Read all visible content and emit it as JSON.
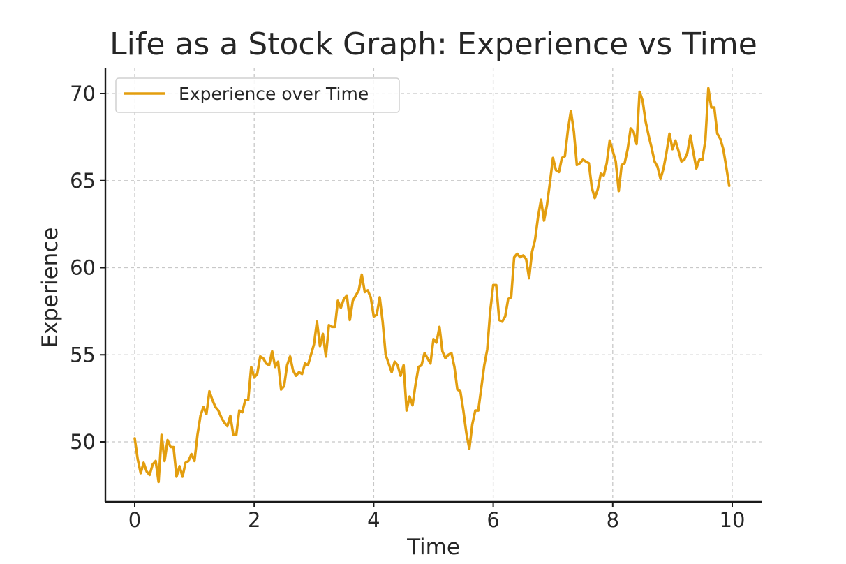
{
  "chart_data": {
    "type": "line",
    "title": "Life as a Stock Graph: Experience vs Time",
    "xlabel": "Time",
    "ylabel": "Experience",
    "xlim": [
      -0.5,
      10.5
    ],
    "ylim": [
      46.6,
      71.5
    ],
    "xticks": [
      0,
      2,
      4,
      6,
      8,
      10
    ],
    "yticks": [
      50,
      55,
      60,
      65,
      70
    ],
    "grid": true,
    "legend_position": "top-left",
    "colors": {
      "series": "#E39E0F",
      "grid": "#c8c8c8",
      "axis": "#1a1a1a"
    },
    "series": [
      {
        "name": "Experience over Time",
        "points": [
          [
            0.0,
            50.2
          ],
          [
            0.05,
            49.0
          ],
          [
            0.1,
            48.2
          ],
          [
            0.15,
            48.8
          ],
          [
            0.2,
            48.3
          ],
          [
            0.25,
            48.1
          ],
          [
            0.3,
            48.7
          ],
          [
            0.35,
            48.9
          ],
          [
            0.4,
            47.7
          ],
          [
            0.45,
            50.4
          ],
          [
            0.5,
            48.9
          ],
          [
            0.55,
            50.1
          ],
          [
            0.6,
            49.7
          ],
          [
            0.65,
            49.7
          ],
          [
            0.7,
            48.0
          ],
          [
            0.75,
            48.6
          ],
          [
            0.8,
            48.0
          ],
          [
            0.85,
            48.8
          ],
          [
            0.9,
            48.9
          ],
          [
            0.95,
            49.3
          ],
          [
            1.0,
            48.9
          ],
          [
            1.05,
            50.4
          ],
          [
            1.1,
            51.5
          ],
          [
            1.15,
            52.0
          ],
          [
            1.2,
            51.6
          ],
          [
            1.25,
            52.9
          ],
          [
            1.3,
            52.4
          ],
          [
            1.35,
            52.0
          ],
          [
            1.4,
            51.8
          ],
          [
            1.45,
            51.4
          ],
          [
            1.5,
            51.1
          ],
          [
            1.55,
            50.9
          ],
          [
            1.6,
            51.5
          ],
          [
            1.65,
            50.4
          ],
          [
            1.7,
            50.4
          ],
          [
            1.75,
            51.8
          ],
          [
            1.8,
            51.7
          ],
          [
            1.85,
            52.4
          ],
          [
            1.9,
            52.4
          ],
          [
            1.95,
            54.3
          ],
          [
            2.0,
            53.7
          ],
          [
            2.05,
            53.9
          ],
          [
            2.1,
            54.9
          ],
          [
            2.15,
            54.8
          ],
          [
            2.2,
            54.5
          ],
          [
            2.25,
            54.4
          ],
          [
            2.3,
            55.2
          ],
          [
            2.35,
            54.3
          ],
          [
            2.4,
            54.6
          ],
          [
            2.45,
            53.0
          ],
          [
            2.5,
            53.2
          ],
          [
            2.55,
            54.4
          ],
          [
            2.6,
            54.9
          ],
          [
            2.65,
            54.1
          ],
          [
            2.7,
            53.8
          ],
          [
            2.75,
            54.0
          ],
          [
            2.8,
            53.9
          ],
          [
            2.85,
            54.5
          ],
          [
            2.9,
            54.4
          ],
          [
            2.95,
            55.0
          ],
          [
            3.0,
            55.6
          ],
          [
            3.05,
            56.9
          ],
          [
            3.1,
            55.5
          ],
          [
            3.15,
            56.2
          ],
          [
            3.2,
            54.9
          ],
          [
            3.25,
            56.7
          ],
          [
            3.3,
            56.6
          ],
          [
            3.35,
            56.6
          ],
          [
            3.4,
            58.1
          ],
          [
            3.45,
            57.7
          ],
          [
            3.5,
            58.2
          ],
          [
            3.55,
            58.4
          ],
          [
            3.6,
            57.0
          ],
          [
            3.65,
            58.1
          ],
          [
            3.7,
            58.4
          ],
          [
            3.75,
            58.7
          ],
          [
            3.8,
            59.6
          ],
          [
            3.85,
            58.6
          ],
          [
            3.9,
            58.7
          ],
          [
            3.95,
            58.3
          ],
          [
            4.0,
            57.2
          ],
          [
            4.05,
            57.3
          ],
          [
            4.1,
            58.3
          ],
          [
            4.15,
            56.9
          ],
          [
            4.2,
            55.0
          ],
          [
            4.25,
            54.5
          ],
          [
            4.3,
            54.0
          ],
          [
            4.35,
            54.6
          ],
          [
            4.4,
            54.4
          ],
          [
            4.45,
            53.8
          ],
          [
            4.5,
            54.4
          ],
          [
            4.55,
            51.8
          ],
          [
            4.6,
            52.6
          ],
          [
            4.65,
            52.1
          ],
          [
            4.7,
            53.3
          ],
          [
            4.75,
            54.3
          ],
          [
            4.8,
            54.4
          ],
          [
            4.85,
            55.1
          ],
          [
            4.9,
            54.8
          ],
          [
            4.95,
            54.5
          ],
          [
            5.0,
            55.9
          ],
          [
            5.05,
            55.7
          ],
          [
            5.1,
            56.6
          ],
          [
            5.15,
            55.2
          ],
          [
            5.2,
            54.8
          ],
          [
            5.25,
            55.0
          ],
          [
            5.3,
            55.1
          ],
          [
            5.35,
            54.3
          ],
          [
            5.4,
            53.0
          ],
          [
            5.45,
            52.9
          ],
          [
            5.5,
            51.8
          ],
          [
            5.55,
            50.5
          ],
          [
            5.6,
            49.6
          ],
          [
            5.65,
            51.0
          ],
          [
            5.7,
            51.8
          ],
          [
            5.75,
            51.8
          ],
          [
            5.8,
            53.1
          ],
          [
            5.85,
            54.4
          ],
          [
            5.9,
            55.3
          ],
          [
            5.95,
            57.5
          ],
          [
            6.0,
            59.0
          ],
          [
            6.05,
            59.0
          ],
          [
            6.1,
            57.0
          ],
          [
            6.15,
            56.9
          ],
          [
            6.2,
            57.2
          ],
          [
            6.25,
            58.2
          ],
          [
            6.3,
            58.3
          ],
          [
            6.35,
            60.6
          ],
          [
            6.4,
            60.8
          ],
          [
            6.45,
            60.6
          ],
          [
            6.5,
            60.7
          ],
          [
            6.55,
            60.5
          ],
          [
            6.6,
            59.4
          ],
          [
            6.65,
            60.9
          ],
          [
            6.7,
            61.6
          ],
          [
            6.75,
            62.9
          ],
          [
            6.8,
            63.9
          ],
          [
            6.85,
            62.7
          ],
          [
            6.9,
            63.6
          ],
          [
            6.95,
            64.9
          ],
          [
            7.0,
            66.3
          ],
          [
            7.05,
            65.6
          ],
          [
            7.1,
            65.5
          ],
          [
            7.15,
            66.3
          ],
          [
            7.2,
            66.4
          ],
          [
            7.25,
            67.9
          ],
          [
            7.3,
            69.0
          ],
          [
            7.35,
            67.8
          ],
          [
            7.4,
            65.9
          ],
          [
            7.45,
            66.0
          ],
          [
            7.5,
            66.2
          ],
          [
            7.55,
            66.1
          ],
          [
            7.6,
            66.0
          ],
          [
            7.65,
            64.6
          ],
          [
            7.7,
            64.0
          ],
          [
            7.75,
            64.5
          ],
          [
            7.8,
            65.4
          ],
          [
            7.85,
            65.3
          ],
          [
            7.9,
            66.0
          ],
          [
            7.95,
            67.3
          ],
          [
            8.0,
            66.7
          ],
          [
            8.05,
            66.1
          ],
          [
            8.1,
            64.4
          ],
          [
            8.15,
            65.9
          ],
          [
            8.2,
            66.0
          ],
          [
            8.25,
            66.8
          ],
          [
            8.3,
            68.0
          ],
          [
            8.35,
            67.8
          ],
          [
            8.4,
            67.1
          ],
          [
            8.45,
            70.1
          ],
          [
            8.5,
            69.6
          ],
          [
            8.55,
            68.4
          ],
          [
            8.6,
            67.6
          ],
          [
            8.65,
            66.9
          ],
          [
            8.7,
            66.1
          ],
          [
            8.75,
            65.8
          ],
          [
            8.8,
            65.1
          ],
          [
            8.85,
            65.7
          ],
          [
            8.9,
            66.6
          ],
          [
            8.95,
            67.7
          ],
          [
            9.0,
            66.8
          ],
          [
            9.05,
            67.3
          ],
          [
            9.1,
            66.7
          ],
          [
            9.15,
            66.1
          ],
          [
            9.2,
            66.2
          ],
          [
            9.25,
            66.6
          ],
          [
            9.3,
            67.6
          ],
          [
            9.35,
            66.6
          ],
          [
            9.4,
            65.7
          ],
          [
            9.45,
            66.2
          ],
          [
            9.5,
            66.2
          ],
          [
            9.55,
            67.3
          ],
          [
            9.6,
            70.3
          ],
          [
            9.65,
            69.2
          ],
          [
            9.7,
            69.2
          ],
          [
            9.75,
            67.7
          ],
          [
            9.8,
            67.4
          ],
          [
            9.85,
            66.8
          ],
          [
            9.9,
            65.8
          ],
          [
            9.95,
            64.7
          ]
        ]
      }
    ]
  }
}
